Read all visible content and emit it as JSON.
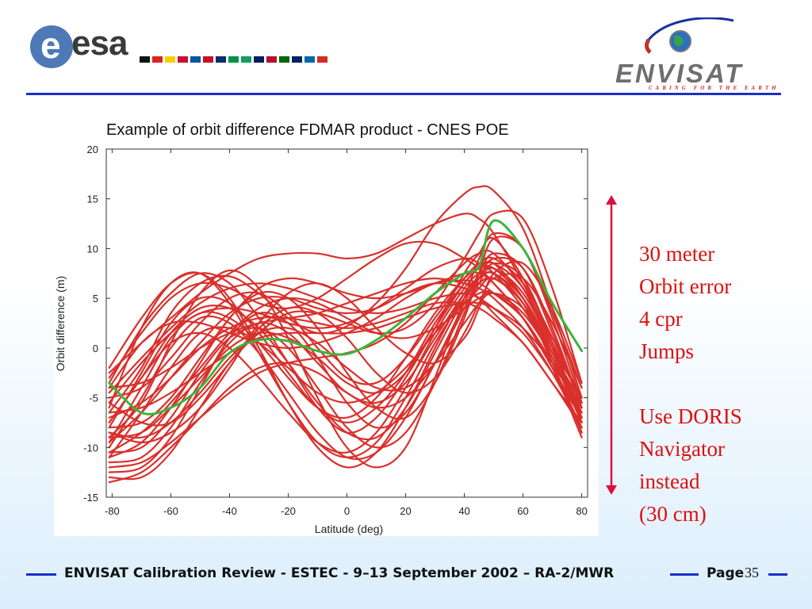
{
  "header": {
    "esa_logo_text": "esa",
    "esa_logo_letter": "e",
    "envisat_logo_text": "ENVISAT",
    "envisat_tagline": "CARING FOR THE EARTH",
    "flags": [
      "#111111",
      "#dd2222",
      "#f4d000",
      "#c8102e",
      "#0055a4",
      "#c8102e",
      "#002f6c",
      "#009246",
      "#169b62",
      "#00205b",
      "#ba0c2f",
      "#006600",
      "#012169",
      "#006aa7",
      "#d52b1e"
    ]
  },
  "side_note": {
    "lines": [
      "30 meter",
      "Orbit error",
      "4 cpr",
      "Jumps",
      "",
      "Use DORIS",
      "Navigator",
      "instead",
      "(30 cm)"
    ],
    "color": "#dc1010"
  },
  "footer": {
    "text": "ENVISAT Calibration Review - ESTEC - 9–13 September 2002 – RA-2/MWR",
    "page_label": "Page",
    "page_number": "35"
  },
  "colors": {
    "accent": "#1a2fc8",
    "series_red": "#d9302c",
    "series_green": "#3cb43c"
  },
  "chart_data": {
    "type": "line",
    "title": "Example of orbit difference FDMAR product - CNES POE",
    "xlabel": "Latitude (deg)",
    "ylabel": "Orbit difference (m)",
    "xlim": [
      -82,
      82
    ],
    "ylim": [
      -15,
      20
    ],
    "x_ticks": [
      -80,
      -60,
      -40,
      -20,
      0,
      20,
      40,
      60,
      80
    ],
    "y_ticks": [
      -15,
      -10,
      -5,
      0,
      5,
      10,
      15,
      20
    ],
    "grid": false,
    "x": [
      -81,
      -70,
      -60,
      -50,
      -40,
      -30,
      -20,
      -10,
      0,
      10,
      20,
      30,
      40,
      45,
      50,
      60,
      70,
      80
    ],
    "series": [
      {
        "color": "#3cb43c",
        "values": [
          -3.5,
          -6.5,
          -6.0,
          -4.0,
          -0.5,
          0.8,
          0.7,
          -0.3,
          -0.6,
          0.8,
          3.0,
          5.5,
          7.5,
          8.2,
          12.8,
          10.0,
          4.5,
          -0.3
        ]
      },
      {
        "color": "#d9302c",
        "values": [
          -6.5,
          -2.0,
          3.5,
          6.5,
          7.2,
          5.5,
          3.0,
          1.5,
          2.2,
          4.5,
          8.0,
          12.5,
          15.5,
          16.2,
          15.8,
          12.0,
          4.0,
          -5.0
        ]
      },
      {
        "color": "#d9302c",
        "values": [
          -3.5,
          2.0,
          5.5,
          7.5,
          6.5,
          3.0,
          -1.5,
          -6.0,
          -8.5,
          -7.0,
          -3.0,
          2.0,
          7.5,
          9.5,
          11.0,
          7.0,
          0.5,
          -7.0
        ]
      },
      {
        "color": "#d9302c",
        "values": [
          -9.0,
          -5.5,
          0.5,
          5.5,
          7.8,
          6.0,
          1.0,
          -5.0,
          -10.0,
          -12.0,
          -10.0,
          -3.0,
          5.0,
          9.0,
          11.5,
          10.0,
          3.0,
          -5.5
        ]
      },
      {
        "color": "#d9302c",
        "values": [
          -11.0,
          -9.5,
          -6.0,
          -1.5,
          3.0,
          5.5,
          5.0,
          2.0,
          -2.5,
          -6.0,
          -7.0,
          -3.5,
          3.0,
          7.5,
          11.0,
          10.0,
          3.5,
          -4.0
        ]
      },
      {
        "color": "#d9302c",
        "values": [
          -13.0,
          -13.0,
          -10.5,
          -6.0,
          -1.5,
          1.5,
          3.5,
          3.5,
          2.5,
          1.5,
          2.0,
          4.5,
          9.0,
          11.5,
          13.5,
          13.0,
          6.0,
          -3.5
        ]
      },
      {
        "color": "#d9302c",
        "values": [
          -4.0,
          0.5,
          2.5,
          2.5,
          1.5,
          0.5,
          0.0,
          0.5,
          1.5,
          3.0,
          5.0,
          6.5,
          6.8,
          6.5,
          5.5,
          3.0,
          -1.5,
          -6.5
        ]
      },
      {
        "color": "#d9302c",
        "values": [
          -8.5,
          -9.5,
          -8.5,
          -6.0,
          -2.0,
          2.5,
          5.5,
          6.5,
          5.0,
          2.0,
          -0.5,
          -1.5,
          1.0,
          4.0,
          7.5,
          8.5,
          4.0,
          -3.5
        ]
      },
      {
        "color": "#d9302c",
        "values": [
          -6.0,
          2.0,
          6.5,
          7.5,
          4.5,
          -0.5,
          -5.5,
          -9.5,
          -11.0,
          -9.5,
          -5.0,
          0.5,
          5.0,
          6.5,
          7.0,
          4.5,
          -0.5,
          -5.5
        ]
      },
      {
        "color": "#d9302c",
        "values": [
          -10.5,
          -10.0,
          -7.0,
          -2.5,
          1.0,
          2.0,
          0.0,
          -4.0,
          -8.0,
          -10.0,
          -8.5,
          -3.5,
          3.5,
          6.5,
          8.5,
          7.0,
          0.5,
          -7.5
        ]
      },
      {
        "color": "#d9302c",
        "values": [
          -2.5,
          0.5,
          3.0,
          5.5,
          7.5,
          9.0,
          9.5,
          9.5,
          9.0,
          9.5,
          11.0,
          12.5,
          13.5,
          13.0,
          11.5,
          6.5,
          0.5,
          -5.0
        ]
      },
      {
        "color": "#d9302c",
        "values": [
          -9.5,
          -6.5,
          -3.0,
          0.5,
          3.5,
          5.0,
          5.0,
          4.0,
          3.5,
          4.0,
          5.5,
          6.5,
          6.0,
          5.0,
          3.5,
          0.5,
          -3.5,
          -8.0
        ]
      },
      {
        "color": "#d9302c",
        "values": [
          -5.5,
          -1.5,
          1.5,
          3.5,
          4.0,
          3.5,
          2.5,
          2.0,
          2.5,
          4.0,
          6.0,
          8.0,
          9.0,
          8.5,
          7.5,
          4.0,
          -1.0,
          -6.5
        ]
      },
      {
        "color": "#d9302c",
        "values": [
          -7.5,
          -3.0,
          0.5,
          1.5,
          0.0,
          -3.0,
          -6.5,
          -9.5,
          -10.5,
          -8.5,
          -4.0,
          1.5,
          6.0,
          7.5,
          8.0,
          5.0,
          -0.5,
          -6.0
        ]
      },
      {
        "color": "#d9302c",
        "values": [
          -12.5,
          -12.0,
          -9.0,
          -4.0,
          1.0,
          3.5,
          2.5,
          -1.0,
          -5.5,
          -8.0,
          -6.5,
          -1.5,
          4.5,
          7.5,
          9.5,
          8.0,
          1.5,
          -6.0
        ]
      },
      {
        "color": "#d9302c",
        "values": [
          -3.0,
          1.5,
          5.0,
          6.5,
          6.0,
          4.5,
          4.0,
          5.0,
          7.0,
          9.0,
          10.5,
          10.5,
          9.0,
          8.0,
          6.5,
          3.0,
          -2.0,
          -7.0
        ]
      },
      {
        "color": "#d9302c",
        "values": [
          -9.0,
          -8.5,
          -6.0,
          -3.0,
          0.0,
          1.5,
          1.0,
          -1.0,
          -3.5,
          -4.5,
          -2.5,
          2.0,
          6.5,
          8.0,
          8.5,
          5.0,
          -1.0,
          -7.5
        ]
      },
      {
        "color": "#d9302c",
        "values": [
          -5.0,
          -4.0,
          -1.0,
          2.5,
          5.0,
          5.5,
          3.5,
          0.0,
          -3.0,
          -3.5,
          -1.0,
          3.0,
          7.0,
          8.5,
          9.0,
          6.5,
          1.0,
          -5.5
        ]
      },
      {
        "color": "#d9302c",
        "values": [
          -8.0,
          -2.5,
          2.5,
          5.0,
          4.5,
          1.5,
          -2.5,
          -6.0,
          -7.5,
          -6.0,
          -2.5,
          2.5,
          6.5,
          8.0,
          8.5,
          6.0,
          0.0,
          -6.5
        ]
      },
      {
        "color": "#d9302c",
        "values": [
          -11.5,
          -11.0,
          -8.0,
          -3.5,
          0.5,
          2.5,
          1.5,
          -1.5,
          -4.5,
          -5.5,
          -3.5,
          1.0,
          5.5,
          7.0,
          7.5,
          4.5,
          -1.5,
          -8.5
        ]
      },
      {
        "color": "#d9302c",
        "values": [
          -7.0,
          -5.5,
          -3.0,
          0.0,
          2.0,
          3.0,
          3.0,
          2.5,
          2.0,
          2.5,
          3.5,
          4.5,
          4.5,
          4.0,
          3.0,
          0.5,
          -3.5,
          -7.5
        ]
      },
      {
        "color": "#d9302c",
        "values": [
          -4.5,
          -1.0,
          2.0,
          4.5,
          6.0,
          6.5,
          6.0,
          5.0,
          4.0,
          3.5,
          4.0,
          5.0,
          5.5,
          5.0,
          4.0,
          1.5,
          -2.5,
          -7.0
        ]
      },
      {
        "color": "#d9302c",
        "values": [
          -10.0,
          -5.0,
          0.0,
          3.0,
          2.5,
          -0.5,
          -4.5,
          -8.5,
          -11.0,
          -10.5,
          -7.0,
          -1.5,
          4.0,
          6.0,
          7.0,
          4.5,
          -1.5,
          -8.5
        ]
      },
      {
        "color": "#d9302c",
        "values": [
          -8.0,
          -7.5,
          -5.0,
          -1.0,
          3.0,
          6.0,
          7.0,
          6.5,
          5.5,
          5.0,
          5.5,
          6.5,
          7.5,
          7.5,
          6.5,
          3.0,
          -2.0,
          -8.0
        ]
      },
      {
        "color": "#d9302c",
        "values": [
          -12.0,
          -11.5,
          -9.5,
          -7.0,
          -4.5,
          -2.5,
          -1.5,
          -1.0,
          -0.5,
          0.5,
          2.5,
          5.5,
          8.5,
          9.5,
          9.5,
          6.0,
          0.0,
          -7.0
        ]
      },
      {
        "color": "#d9302c",
        "values": [
          -2.0,
          3.0,
          6.5,
          7.5,
          5.0,
          0.0,
          -5.5,
          -10.0,
          -12.0,
          -10.5,
          -6.0,
          0.0,
          5.5,
          7.0,
          7.5,
          5.0,
          0.0,
          -5.0
        ]
      },
      {
        "color": "#d9302c",
        "values": [
          -9.5,
          -4.0,
          1.0,
          3.5,
          3.0,
          0.5,
          -3.0,
          -6.0,
          -7.0,
          -5.0,
          -1.0,
          3.5,
          7.0,
          8.0,
          8.0,
          5.0,
          -0.5,
          -7.0
        ]
      },
      {
        "color": "#d9302c",
        "values": [
          -6.5,
          -6.0,
          -4.5,
          -2.5,
          -0.5,
          1.0,
          1.5,
          1.5,
          1.5,
          2.0,
          3.0,
          4.0,
          4.5,
          4.5,
          4.0,
          2.0,
          -1.5,
          -6.0
        ]
      },
      {
        "color": "#d9302c",
        "values": [
          -10.5,
          -8.5,
          -5.5,
          -2.0,
          1.5,
          4.0,
          5.0,
          4.5,
          3.0,
          1.5,
          1.0,
          2.0,
          4.0,
          5.0,
          5.5,
          3.5,
          -1.0,
          -7.5
        ]
      },
      {
        "color": "#d9302c",
        "values": [
          -5.5,
          -7.5,
          -7.5,
          -5.0,
          -1.5,
          2.0,
          4.0,
          3.5,
          1.0,
          -2.5,
          -4.5,
          -3.0,
          1.5,
          4.5,
          7.0,
          7.0,
          2.5,
          -4.0
        ]
      },
      {
        "color": "#d9302c",
        "values": [
          -13.5,
          -12.5,
          -10.0,
          -7.0,
          -4.0,
          -2.0,
          -1.5,
          -2.5,
          -4.5,
          -6.0,
          -5.0,
          -1.5,
          4.0,
          7.0,
          9.0,
          8.0,
          2.0,
          -6.0
        ]
      },
      {
        "color": "#d9302c",
        "values": [
          -8.5,
          -9.0,
          -7.5,
          -4.5,
          -1.0,
          1.5,
          2.0,
          0.5,
          -2.0,
          -4.0,
          -4.0,
          -1.5,
          2.5,
          4.5,
          5.5,
          4.0,
          -0.5,
          -7.0
        ]
      },
      {
        "color": "#d9302c",
        "values": [
          -4.0,
          -3.5,
          -2.0,
          0.0,
          1.5,
          2.5,
          3.0,
          3.5,
          4.5,
          5.5,
          6.5,
          7.0,
          6.5,
          6.0,
          5.0,
          2.0,
          -2.5,
          -8.0
        ]
      },
      {
        "color": "#d9302c",
        "values": [
          -11.0,
          -6.5,
          -2.0,
          1.5,
          2.0,
          0.5,
          -2.0,
          -4.5,
          -5.5,
          -4.5,
          -2.0,
          1.5,
          4.5,
          5.5,
          5.5,
          3.0,
          -2.0,
          -9.0
        ]
      },
      {
        "color": "#d9302c",
        "values": [
          -7.5,
          -3.0,
          1.5,
          4.0,
          4.0,
          2.0,
          -1.5,
          -5.5,
          -8.5,
          -9.0,
          -6.0,
          -0.5,
          5.0,
          7.0,
          8.0,
          5.5,
          0.0,
          -7.5
        ]
      }
    ]
  }
}
